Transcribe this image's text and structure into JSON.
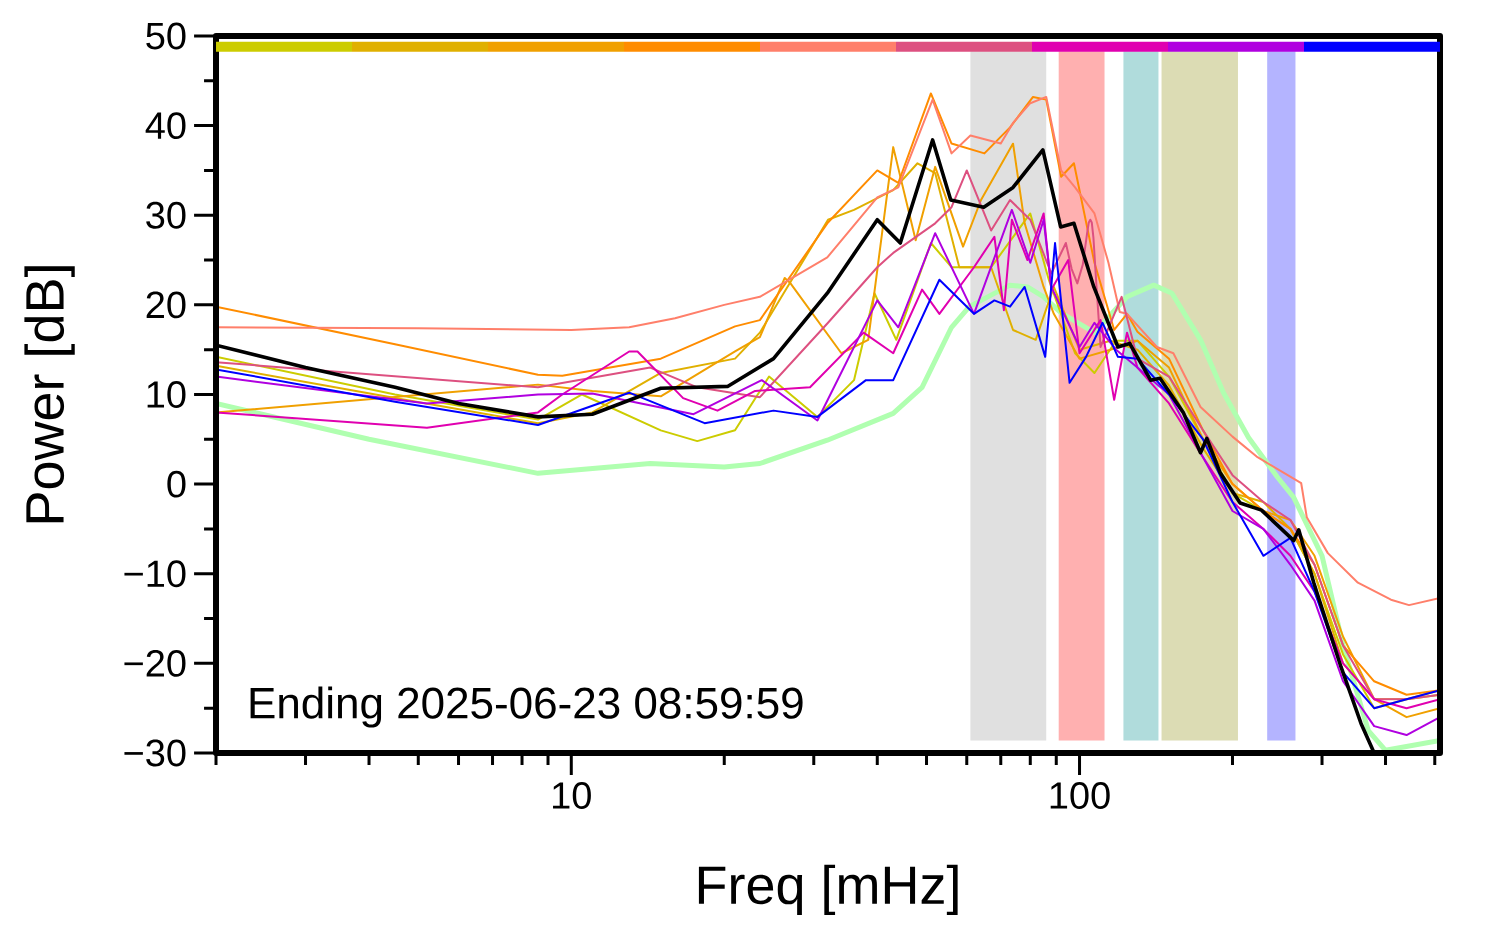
{
  "chart_data": {
    "type": "line",
    "xlabel": "Freq [mHz]",
    "ylabel": "Power [dB]",
    "log": "x",
    "legend": false,
    "grid": false,
    "marker": "none",
    "line_style": "solid",
    "annotations": [
      "Ending 2025-06-23 08:59:59"
    ],
    "xlim": [
      2,
      512
    ],
    "ylim": [
      -30,
      50
    ],
    "xticks": [
      {
        "value": 2,
        "label": null
      },
      {
        "value": 3,
        "label": null
      },
      {
        "value": 4,
        "label": null
      },
      {
        "value": 5,
        "label": null
      },
      {
        "value": 6,
        "label": null
      },
      {
        "value": 7,
        "label": null
      },
      {
        "value": 8,
        "label": null
      },
      {
        "value": 9,
        "label": null
      },
      10,
      {
        "value": 20,
        "label": null
      },
      {
        "value": 30,
        "label": null
      },
      {
        "value": 40,
        "label": null
      },
      {
        "value": 50,
        "label": null
      },
      {
        "value": 60,
        "label": null
      },
      {
        "value": 70,
        "label": null
      },
      {
        "value": 80,
        "label": null
      },
      {
        "value": 90,
        "label": null
      },
      100,
      {
        "value": 200,
        "label": null
      },
      {
        "value": 300,
        "label": null
      },
      {
        "value": 400,
        "label": null
      },
      {
        "value": 500,
        "label": null
      }
    ],
    "yticks": [
      {
        "value": -30,
        "label": "−30"
      },
      {
        "value": -25,
        "label": null
      },
      {
        "value": -20,
        "label": "−20"
      },
      {
        "value": -15,
        "label": null
      },
      {
        "value": -10,
        "label": "−10"
      },
      {
        "value": -5,
        "label": null
      },
      0,
      {
        "value": 5,
        "label": null
      },
      10,
      {
        "value": 15,
        "label": null
      },
      20,
      {
        "value": 25,
        "label": null
      },
      30,
      {
        "value": 35,
        "label": null
      },
      40,
      {
        "value": 45,
        "label": null
      },
      50
    ],
    "bands": [
      {
        "axis": "x",
        "from": 61,
        "to": 86,
        "color": "#e0e0e0"
      },
      {
        "axis": "x",
        "from": 91,
        "to": 112,
        "color": "#ffb0b0"
      },
      {
        "axis": "x",
        "from": 122,
        "to": 143,
        "color": "#b0dcdc"
      },
      {
        "axis": "x",
        "from": 145,
        "to": 205,
        "color": "#dcdcb4"
      },
      {
        "axis": "x",
        "from": 234,
        "to": 266,
        "color": "#b4b4ff"
      }
    ],
    "series": [
      {
        "color": "#b0ffb0",
        "x": [
          2,
          4,
          8.6,
          14.3,
          20,
          23.5,
          31.9,
          43,
          49,
          56,
          60.7,
          73,
          79,
          85,
          92,
          107,
          124,
          140,
          152,
          173,
          192,
          215,
          245,
          264,
          300,
          330,
          370,
          400,
          512
        ],
        "values": [
          9,
          5,
          1.2,
          2.3,
          1.9,
          2.3,
          4.9,
          7.9,
          10.8,
          17.5,
          19.8,
          22.2,
          22,
          20.9,
          19.1,
          16.9,
          20.9,
          22.2,
          21.3,
          16.1,
          10.2,
          5.2,
          0.8,
          -1.5,
          -8,
          -18,
          -27.5,
          -29.7,
          -28.6
        ]
      },
      {
        "color": "#cccc00",
        "x": [
          2,
          4.5,
          8.6,
          10.5,
          15,
          17.7,
          21,
          24.5,
          30.5,
          36,
          39.5,
          43.6,
          51,
          56,
          67,
          80,
          87,
          98,
          107,
          118,
          130,
          150,
          175,
          200,
          230,
          260,
          290,
          330,
          380,
          440,
          512
        ],
        "values": [
          14.2,
          10,
          7.2,
          10,
          6,
          4.8,
          6,
          12,
          7.5,
          11.6,
          21.3,
          16.1,
          26.9,
          24.2,
          24.2,
          30.2,
          22.8,
          14.6,
          12.4,
          16,
          16,
          12,
          5,
          -1,
          -3,
          -5,
          -10,
          -19,
          -25,
          -24,
          -23.5
        ]
      },
      {
        "color": "#e0b000",
        "x": [
          2,
          4.5,
          8.6,
          11,
          15,
          21,
          23.5,
          32,
          36,
          43,
          48,
          52,
          58,
          67,
          74,
          82,
          89,
          100,
          115,
          130,
          150,
          175,
          200,
          230,
          260,
          290,
          330,
          380,
          440,
          512
        ],
        "values": [
          13.2,
          9.6,
          6.8,
          8,
          12.4,
          14,
          16.9,
          29.5,
          30.6,
          32.8,
          35.8,
          34.7,
          24.2,
          24.2,
          17.2,
          16.1,
          22,
          15,
          16,
          15,
          11,
          4,
          -1,
          -2,
          -5,
          -10,
          -20,
          -24,
          -24,
          -23
        ]
      },
      {
        "color": "#f0a000",
        "x": [
          2,
          8.6,
          11,
          15,
          21,
          23.5,
          26.3,
          27,
          34,
          38.4,
          43,
          47.6,
          52,
          59,
          64,
          74,
          78,
          85,
          89,
          100,
          115,
          130,
          150,
          175,
          200,
          230,
          260,
          290,
          330,
          380,
          440,
          512
        ],
        "values": [
          8,
          11.1,
          10.4,
          9.8,
          14.8,
          16.4,
          23,
          22.4,
          14.6,
          16.1,
          37.6,
          27.2,
          35.4,
          26.5,
          31.7,
          38,
          29.1,
          22,
          19,
          14,
          15,
          16,
          13,
          5,
          0,
          -3,
          -4,
          -8,
          -17,
          -24,
          -26,
          -25
        ]
      },
      {
        "color": "#ff8c00",
        "x": [
          2,
          4.5,
          8.6,
          9.6,
          15,
          21,
          23.5,
          31.9,
          40,
          44,
          51,
          56,
          65,
          73,
          81,
          86,
          92,
          97.5,
          107,
          117,
          124,
          130,
          150,
          175,
          200,
          230,
          260,
          290,
          330,
          380,
          440,
          512
        ],
        "values": [
          19.8,
          15.6,
          12.2,
          12.1,
          14,
          17.6,
          18.3,
          29.1,
          35,
          33.6,
          43.6,
          38,
          36.9,
          39.8,
          43.2,
          42.9,
          34.3,
          35.8,
          24.7,
          17.2,
          19,
          17,
          14,
          6,
          0,
          -3,
          -5,
          -9,
          -18,
          -22,
          -23.5,
          -23
        ]
      },
      {
        "color": "#ff7f6a",
        "x": [
          2,
          5,
          10,
          13,
          16,
          20,
          23.5,
          31.9,
          40,
          44,
          51.4,
          56,
          61,
          70,
          74,
          80,
          86,
          92,
          98,
          107,
          114,
          120,
          124,
          142,
          153,
          173,
          200,
          224,
          273,
          280,
          308,
          353,
          410,
          445,
          512
        ],
        "values": [
          17.5,
          17.4,
          17.2,
          17.5,
          18.5,
          20,
          20.9,
          25.3,
          32,
          33.1,
          42.9,
          36.9,
          38.9,
          38,
          40.3,
          42.5,
          43.2,
          35,
          33.1,
          30.2,
          24.7,
          19.2,
          19,
          15.3,
          14.6,
          8.6,
          5.3,
          3,
          0.1,
          -3.7,
          -7.7,
          -11,
          -12.9,
          -13.5,
          -12.7
        ]
      },
      {
        "color": "#dd5080",
        "x": [
          2,
          8.6,
          14.3,
          17.7,
          23.5,
          32,
          40,
          43,
          52,
          56,
          60,
          67,
          73,
          80,
          88,
          94,
          96.5,
          99,
          101.5,
          103.5,
          104.3,
          105,
          105.7,
          106.5,
          108,
          110,
          121,
          130,
          150,
          175,
          200,
          230,
          260,
          290,
          330,
          380,
          440,
          512
        ],
        "values": [
          13.6,
          10.8,
          13,
          10.8,
          9.7,
          18,
          24.2,
          25.8,
          29.1,
          30.9,
          35,
          28.3,
          31.7,
          29.5,
          23.5,
          26.9,
          24,
          22.4,
          24.5,
          28,
          29.2,
          29.5,
          29.2,
          27.5,
          22,
          15.3,
          20.9,
          14,
          12,
          6,
          1,
          -2,
          -4,
          -9,
          -18,
          -24,
          -24,
          -23.5
        ]
      },
      {
        "color": "#e000b0",
        "x": [
          2,
          5.2,
          8.6,
          9.6,
          13,
          13.5,
          16.6,
          19.4,
          23,
          29.5,
          37.6,
          43,
          49,
          53,
          62,
          68,
          71,
          73.6,
          79,
          85,
          88,
          95,
          100,
          110,
          117,
          124,
          130,
          150,
          175,
          200,
          230,
          260,
          290,
          330,
          380,
          440,
          512
        ],
        "values": [
          8,
          6.3,
          8,
          10,
          14.8,
          14.8,
          9.6,
          8.2,
          10.4,
          10.8,
          16.9,
          14.6,
          21.7,
          19,
          24.2,
          27.6,
          19.4,
          29.5,
          25,
          30.2,
          21.7,
          25,
          14.6,
          18.3,
          9.4,
          16.9,
          13,
          9,
          3,
          -2,
          -5,
          -8,
          -12,
          -20,
          -24,
          -25,
          -24
        ]
      },
      {
        "color": "#b000e0",
        "x": [
          2,
          5.2,
          8.6,
          11,
          17.4,
          23.7,
          30.5,
          40,
          44,
          52,
          62,
          73.6,
          80,
          85,
          88,
          100,
          107,
          118,
          130,
          150,
          175,
          200,
          230,
          260,
          290,
          330,
          380,
          440,
          512
        ],
        "values": [
          12,
          9,
          10,
          10.1,
          7.8,
          11.6,
          7.1,
          20.5,
          17.5,
          28,
          19,
          30.6,
          24.7,
          29.5,
          22,
          15.3,
          18,
          15,
          13,
          10,
          3,
          -3,
          -5,
          -9,
          -13,
          -22,
          -27,
          -28,
          -26
        ]
      },
      {
        "color": "#0000ff",
        "x": [
          2,
          4.5,
          8.6,
          13,
          18.3,
          25,
          30.5,
          38,
          43,
          53,
          62,
          68,
          73,
          78,
          85.6,
          89.5,
          95.6,
          103,
          111,
          119,
          130,
          150,
          175,
          200,
          230,
          260,
          290,
          330,
          380,
          440,
          512
        ],
        "values": [
          12.8,
          9.2,
          6.6,
          10.2,
          6.8,
          8.2,
          7.5,
          11.6,
          11.6,
          22.8,
          19,
          20.5,
          19.8,
          22,
          14.2,
          26.9,
          11.3,
          14.2,
          18,
          14.2,
          14,
          10,
          5,
          -2,
          -8,
          -6,
          -12,
          -21,
          -25,
          -24,
          -23
        ]
      },
      {
        "color": "#000000",
        "x": [
          2,
          3,
          4.5,
          6,
          8.6,
          11,
          15,
          20.3,
          25,
          31.9,
          40,
          44.4,
          51.4,
          55.8,
          64.8,
          74,
          84.7,
          91.8,
          97.5,
          106.7,
          119,
          125.5,
          138,
          144,
          160,
          173,
          178,
          189,
          207,
          228,
          264,
          270,
          289,
          327,
          358,
          380
        ],
        "values": [
          15.5,
          13,
          10.8,
          9,
          7.5,
          7.8,
          10.7,
          10.9,
          14,
          21.3,
          29.5,
          26.9,
          38.4,
          31.7,
          30.9,
          33.1,
          37.3,
          28.7,
          29.1,
          22,
          15.3,
          15.7,
          11.6,
          11.8,
          8,
          3.5,
          5.1,
          1.3,
          -2.1,
          -2.9,
          -6.3,
          -5.1,
          -11,
          -20.4,
          -26.7,
          -30
        ]
      }
    ]
  }
}
